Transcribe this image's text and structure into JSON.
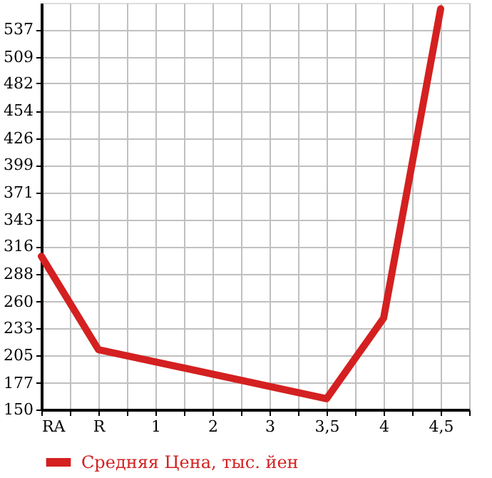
{
  "chart_data": {
    "type": "line",
    "categories": [
      "RA",
      "R",
      "1",
      "2",
      "3",
      "3,5",
      "4",
      "4,5"
    ],
    "series": [
      {
        "name": "Средняя Цена, тыс. йен",
        "color": "#d42020",
        "values": [
          306,
          211,
          null,
          null,
          null,
          161,
          243,
          558
        ]
      }
    ],
    "ylim": [
      150,
      564
    ],
    "yticks": [
      150,
      177,
      205,
      233,
      260,
      288,
      316,
      343,
      371,
      399,
      426,
      454,
      482,
      509,
      537
    ],
    "grid": true,
    "legend": "bottom left",
    "marker": "none",
    "line_style": "solid"
  }
}
